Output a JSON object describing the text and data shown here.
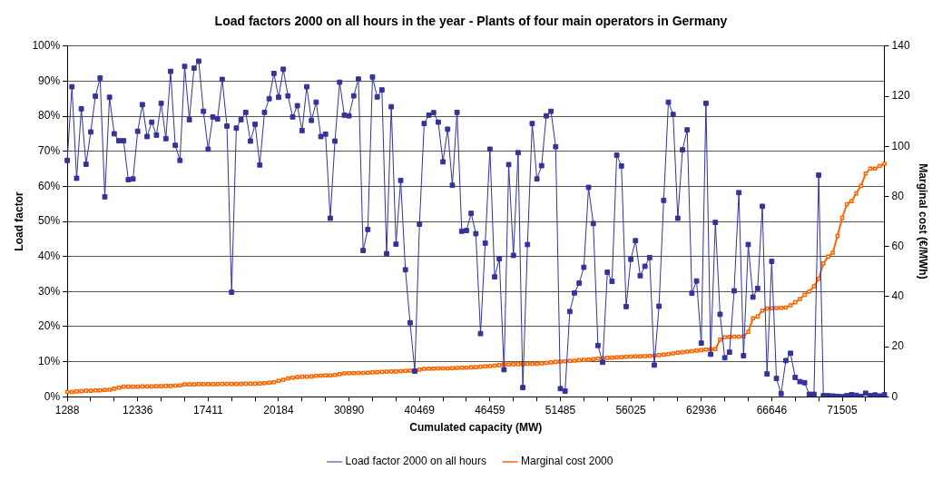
{
  "chart_data": {
    "type": "line",
    "title": "Load factors 2000 on all hours in the year - Plants of four main operators in Germany",
    "xlabel": "Cumulated capacity (MW)",
    "ylabel": "Load factor",
    "y2label": "Marginal cost (€/MWh)",
    "categories": [
      "1288",
      null,
      null,
      null,
      null,
      null,
      null,
      null,
      null,
      null,
      null,
      null,
      null,
      null,
      null,
      "12336",
      null,
      null,
      null,
      null,
      null,
      null,
      null,
      null,
      null,
      null,
      null,
      null,
      null,
      null,
      "17411",
      null,
      null,
      null,
      null,
      null,
      null,
      null,
      null,
      null,
      null,
      null,
      null,
      null,
      null,
      "20184",
      null,
      null,
      null,
      null,
      null,
      null,
      null,
      null,
      null,
      null,
      null,
      null,
      null,
      null,
      "30890",
      null,
      null,
      null,
      null,
      null,
      null,
      null,
      null,
      null,
      null,
      null,
      null,
      null,
      null,
      "40469",
      null,
      null,
      null,
      null,
      null,
      null,
      null,
      null,
      null,
      null,
      null,
      null,
      null,
      null,
      "46459",
      null,
      null,
      null,
      null,
      null,
      null,
      null,
      null,
      null,
      null,
      null,
      null,
      null,
      null,
      "51485",
      null,
      null,
      null,
      null,
      null,
      null,
      null,
      null,
      null,
      null,
      null,
      null,
      null,
      null,
      "56025",
      null,
      null,
      null,
      null,
      null,
      null,
      null,
      null,
      null,
      null,
      null,
      null,
      null,
      null,
      "62936",
      null,
      null,
      null,
      null,
      null,
      null,
      null,
      null,
      null,
      null,
      null,
      null,
      null,
      null,
      "66646",
      null,
      null,
      null,
      null,
      null,
      null,
      null,
      null,
      null,
      null,
      null,
      null,
      null,
      null,
      "71505",
      null,
      null,
      null,
      null,
      null,
      null,
      null,
      null,
      null
    ],
    "series": [
      {
        "name": "Load factor 2000 on all hours",
        "color": "#333399",
        "marker": "square",
        "values": [
          67.4,
          88.4,
          62.3,
          82.1,
          66.3,
          75.5,
          85.7,
          90.9,
          57.0,
          85.4,
          75.0,
          73.0,
          73.0,
          61.9,
          62.1,
          75.7,
          83.3,
          74.2,
          78.3,
          74.6,
          83.7,
          73.6,
          92.8,
          71.7,
          67.4,
          94.2,
          79.0,
          93.7,
          95.7,
          81.4,
          70.6,
          79.8,
          79.2,
          90.5,
          77.2,
          29.8,
          76.6,
          79.0,
          81.1,
          72.9,
          77.7,
          66.1,
          81.1,
          85.0,
          92.2,
          85.4,
          93.4,
          85.8,
          79.8,
          83.0,
          75.9,
          88.4,
          78.8,
          84.0,
          74.2,
          74.9,
          50.9,
          72.9,
          89.7,
          80.3,
          80.1,
          85.8,
          90.6,
          41.7,
          47.7,
          91.2,
          85.5,
          87.5,
          40.8,
          82.7,
          43.5,
          61.7,
          36.2,
          21.1,
          7.3,
          49.2,
          77.9,
          80.3,
          81.0,
          78.3,
          67.0,
          76.3,
          60.3,
          81.1,
          47.2,
          47.4,
          52.3,
          46.5,
          18.0,
          43.8,
          70.6,
          34.2,
          39.3,
          7.7,
          66.2,
          40.3,
          69.6,
          2.6,
          43.4,
          77.9,
          62.1,
          65.9,
          80.1,
          81.4,
          71.3,
          2.3,
          1.6,
          24.3,
          29.6,
          32.4,
          36.9,
          59.7,
          49.4,
          14.6,
          9.8,
          35.5,
          32.9,
          68.9,
          65.8,
          25.7,
          39.2,
          44.5,
          34.5,
          37.2,
          39.7,
          9.0,
          25.8,
          56.0,
          84.0,
          80.5,
          50.9,
          70.4,
          76.1,
          29.5,
          33.0,
          15.3,
          83.7,
          12.1,
          49.7,
          23.5,
          11.1,
          12.7,
          30.2,
          58.2,
          11.7,
          43.4,
          28.4,
          30.9,
          54.3,
          6.5,
          38.6,
          5.2,
          0.9,
          10.3,
          12.4,
          5.5,
          4.3,
          4.0,
          0.7,
          0.7,
          63.2,
          0.3,
          0.3,
          0.2,
          0.1,
          0,
          0.3,
          0.6,
          0.4,
          0.1,
          1.0,
          0.3,
          0.5,
          0.2,
          0.6
        ]
      },
      {
        "name": "Marginal cost 2000",
        "color": "#ff6600",
        "marker": "square",
        "axis": "y2",
        "values": [
          1.9,
          1.9,
          2.1,
          2.2,
          2.4,
          2.4,
          2.5,
          2.5,
          2.7,
          2.8,
          3.2,
          3.6,
          4.0,
          4.0,
          4.0,
          4.0,
          4.1,
          4.1,
          4.1,
          4.2,
          4.2,
          4.3,
          4.3,
          4.4,
          4.5,
          4.9,
          4.9,
          4.9,
          5.0,
          5.0,
          5.0,
          5.0,
          5.0,
          5.1,
          5.1,
          5.1,
          5.1,
          5.1,
          5.2,
          5.2,
          5.2,
          5.3,
          5.4,
          5.6,
          5.8,
          6.3,
          6.8,
          7.3,
          7.6,
          7.8,
          8.0,
          8.0,
          8.1,
          8.3,
          8.4,
          8.5,
          8.5,
          8.7,
          9.0,
          9.3,
          9.4,
          9.4,
          9.5,
          9.5,
          9.6,
          9.7,
          9.8,
          9.9,
          10.0,
          10.1,
          10.1,
          10.2,
          10.3,
          10.4,
          10.4,
          10.8,
          11.1,
          11.2,
          11.2,
          11.3,
          11.3,
          11.3,
          11.4,
          11.5,
          11.6,
          11.6,
          11.7,
          11.8,
          12.0,
          12.1,
          12.2,
          12.4,
          12.6,
          12.9,
          12.9,
          13.0,
          13.0,
          13.0,
          13.1,
          13.1,
          13.1,
          13.3,
          13.5,
          13.7,
          13.9,
          14.0,
          14.1,
          14.3,
          14.4,
          14.6,
          14.7,
          14.8,
          15.0,
          15.2,
          15.4,
          15.5,
          15.6,
          15.7,
          15.8,
          15.9,
          16.0,
          16.1,
          16.1,
          16.2,
          16.3,
          16.4,
          16.6,
          16.8,
          17.0,
          17.3,
          17.6,
          17.8,
          18.0,
          18.2,
          18.4,
          18.6,
          18.8,
          19.0,
          19.0,
          22.8,
          23.7,
          23.9,
          24.0,
          24.0,
          24.1,
          25.9,
          31.3,
          32.0,
          34.4,
          35.2,
          35.3,
          35.4,
          35.5,
          35.6,
          36.5,
          37.7,
          39.0,
          40.7,
          42.0,
          44.1,
          47.1,
          53.2,
          55.9,
          57.5,
          64.2,
          71.4,
          76.9,
          78.1,
          81.2,
          84.2,
          89.1,
          91.1,
          91.1,
          92.1,
          93.0
        ]
      }
    ],
    "ylim": [
      0,
      100
    ],
    "yticks": [
      {
        "value": 0,
        "label": "0%"
      },
      {
        "value": 10,
        "label": "10%"
      },
      {
        "value": 20,
        "label": "20%"
      },
      {
        "value": 30,
        "label": "30%"
      },
      {
        "value": 40,
        "label": "40%"
      },
      {
        "value": 50,
        "label": "50%"
      },
      {
        "value": 60,
        "label": "60%"
      },
      {
        "value": 70,
        "label": "70%"
      },
      {
        "value": 80,
        "label": "80%"
      },
      {
        "value": 90,
        "label": "90%"
      },
      {
        "value": 100,
        "label": "100%"
      }
    ],
    "y2lim": [
      0,
      140
    ],
    "y2ticks": [
      0,
      20,
      40,
      60,
      80,
      100,
      120,
      140
    ],
    "grid": "y",
    "legend": "bottom"
  }
}
